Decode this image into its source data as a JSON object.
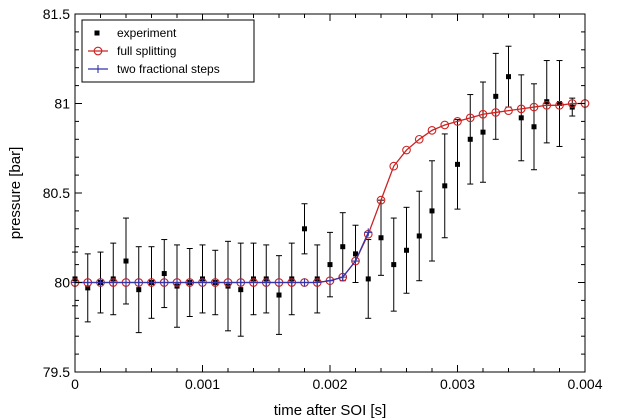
{
  "chart_data": {
    "type": "scatter",
    "xlabel": "time after SOI [s]",
    "ylabel": "pressure [bar]",
    "xlim": [
      0,
      0.004
    ],
    "ylim": [
      79.5,
      81.5
    ],
    "x_ticks": [
      "0",
      "0.001",
      "0.002",
      "0.003",
      "0.004"
    ],
    "y_ticks": [
      "79.5",
      "80",
      "80.5",
      "81",
      "81.5"
    ],
    "legend_position": "top-left",
    "series": [
      {
        "name": "experiment",
        "style": "markers-with-errorbars",
        "color": "#000000",
        "x": [
          0.0,
          0.0001,
          0.0002,
          0.0003,
          0.0004,
          0.0005,
          0.0006,
          0.0007,
          0.0008,
          0.0009,
          0.001,
          0.0011,
          0.0012,
          0.0013,
          0.0014,
          0.0015,
          0.0016,
          0.0017,
          0.0018,
          0.0019,
          0.002,
          0.0021,
          0.0022,
          0.0023,
          0.0024,
          0.0025,
          0.0026,
          0.0027,
          0.0028,
          0.0029,
          0.003,
          0.0031,
          0.0032,
          0.0033,
          0.0034,
          0.0035,
          0.0036,
          0.0037,
          0.0038,
          0.0039
        ],
        "y": [
          80.02,
          79.97,
          80.0,
          80.02,
          80.12,
          79.96,
          80.0,
          80.05,
          79.98,
          80.0,
          80.02,
          80.0,
          79.98,
          79.96,
          80.02,
          80.02,
          79.93,
          80.02,
          80.3,
          80.02,
          80.1,
          80.2,
          80.16,
          80.02,
          80.25,
          80.1,
          80.18,
          80.26,
          80.4,
          80.54,
          80.66,
          80.8,
          80.84,
          81.04,
          81.15,
          80.92,
          80.87,
          81.01,
          81.0,
          80.98
        ],
        "yerr": [
          0.15,
          0.19,
          0.17,
          0.2,
          0.24,
          0.24,
          0.2,
          0.19,
          0.23,
          0.19,
          0.19,
          0.18,
          0.25,
          0.26,
          0.2,
          0.19,
          0.22,
          0.2,
          0.14,
          0.19,
          0.18,
          0.19,
          0.16,
          0.22,
          0.21,
          0.26,
          0.24,
          0.25,
          0.28,
          0.29,
          0.25,
          0.25,
          0.28,
          0.24,
          0.17,
          0.24,
          0.24,
          0.23,
          0.24,
          0.05
        ]
      },
      {
        "name": "full splitting",
        "style": "line-with-open-circles",
        "color": "#cc2222",
        "x": [
          0.0,
          0.0001,
          0.0002,
          0.0003,
          0.0004,
          0.0005,
          0.0006,
          0.0007,
          0.0008,
          0.0009,
          0.001,
          0.0011,
          0.0012,
          0.0013,
          0.0014,
          0.0015,
          0.0016,
          0.0017,
          0.0018,
          0.0019,
          0.002,
          0.0021,
          0.0022,
          0.0023,
          0.0024,
          0.0025,
          0.0026,
          0.0027,
          0.0028,
          0.0029,
          0.003,
          0.0031,
          0.0032,
          0.0033,
          0.0034,
          0.0035,
          0.0036,
          0.0037,
          0.0038,
          0.0039,
          0.004
        ],
        "y": [
          80.0,
          80.0,
          80.0,
          80.0,
          80.0,
          80.0,
          80.0,
          80.0,
          80.0,
          80.0,
          80.0,
          80.0,
          80.0,
          80.0,
          80.0,
          80.0,
          80.0,
          80.0,
          80.0,
          80.0,
          80.01,
          80.03,
          80.12,
          80.27,
          80.46,
          80.65,
          80.74,
          80.8,
          80.85,
          80.88,
          80.9,
          80.92,
          80.94,
          80.95,
          80.96,
          80.97,
          80.98,
          80.99,
          80.99,
          81.0,
          81.0
        ]
      },
      {
        "name": "two fractional steps",
        "style": "line-with-plus",
        "color": "#3333aa",
        "x": [
          0.0,
          0.0001,
          0.0002,
          0.0003,
          0.0004,
          0.0005,
          0.0006,
          0.0007,
          0.0008,
          0.0009,
          0.001,
          0.0011,
          0.0012,
          0.0013,
          0.0014,
          0.0015,
          0.0016,
          0.0017,
          0.0018,
          0.0019,
          0.002,
          0.0021,
          0.0022,
          0.0023
        ],
        "y": [
          80.0,
          80.0,
          80.0,
          80.0,
          80.0,
          80.0,
          80.0,
          80.0,
          80.0,
          80.0,
          80.0,
          80.0,
          80.0,
          80.0,
          80.0,
          80.0,
          80.0,
          80.0,
          80.0,
          80.0,
          80.01,
          80.03,
          80.12,
          80.28
        ]
      }
    ]
  }
}
